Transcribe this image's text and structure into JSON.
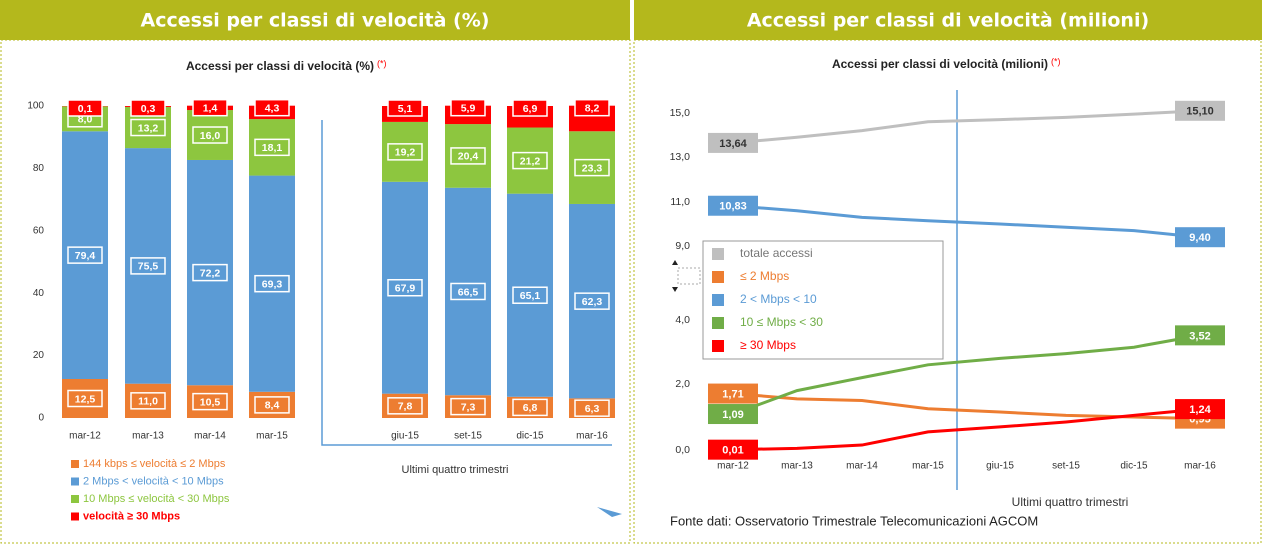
{
  "chart_data": [
    {
      "type": "bar",
      "stacked": true,
      "panel_title": "Accessi per classi di velocità (%)",
      "title": "Accessi per classi di velocità (%)",
      "title_note": "(*)",
      "annotation": "Ultimi quattro trimestri",
      "categories": [
        "mar-12",
        "mar-13",
        "mar-14",
        "mar-15",
        "giu-15",
        "set-15",
        "dic-15",
        "mar-16"
      ],
      "ylim": [
        0,
        100
      ],
      "yticks": [
        0,
        20,
        40,
        60,
        80,
        100
      ],
      "grid": false,
      "series": [
        {
          "name": "144 kbps  ≤ velocità ≤  2 Mbps",
          "color": "#ed7d31",
          "values": [
            12.5,
            11.0,
            10.5,
            8.4,
            7.8,
            7.3,
            6.8,
            6.3
          ],
          "value_labels": [
            "12,5",
            "11,0",
            "10,5",
            "8,4",
            "7,8",
            "7,3",
            "6,8",
            "6,3"
          ]
        },
        {
          "name": "2 Mbps  <  velocità  < 10 Mbps",
          "color": "#5b9bd5",
          "values": [
            79.4,
            75.5,
            72.2,
            69.3,
            67.9,
            66.5,
            65.1,
            62.3
          ],
          "value_labels": [
            "79,4",
            "75,5",
            "72,2",
            "69,3",
            "67,9",
            "66,5",
            "65,1",
            "62,3"
          ]
        },
        {
          "name": "10 Mbps  ≤  velocità  < 30 Mbps",
          "color": "#8dc63f",
          "values": [
            8.0,
            13.2,
            16.0,
            18.1,
            19.2,
            20.4,
            21.2,
            23.3
          ],
          "value_labels": [
            "8,0",
            "13,2",
            "16,0",
            "18,1",
            "19,2",
            "20,4",
            "21,2",
            "23,3"
          ]
        },
        {
          "name": "velocità ≥ 30 Mbps",
          "color": "#ff0000",
          "values": [
            0.1,
            0.3,
            1.4,
            4.3,
            5.1,
            5.9,
            6.9,
            8.2
          ],
          "value_labels": [
            "0,1",
            "0,3",
            "1,4",
            "4,3",
            "5,1",
            "5,9",
            "6,9",
            "8,2"
          ]
        }
      ]
    },
    {
      "type": "line",
      "panel_title": "Accessi per classi di velocità (milioni)",
      "title": "Accessi per classi di velocità (milioni)",
      "title_note": "(*)",
      "annotation": "Ultimi quattro trimestri",
      "categories": [
        "mar-12",
        "mar-13",
        "mar-14",
        "mar-15",
        "giu-15",
        "set-15",
        "dic-15",
        "mar-16"
      ],
      "ylim": [
        0,
        15
      ],
      "yticks": [
        {
          "value": 0,
          "label": "0,0"
        },
        {
          "value": 2,
          "label": "2,0"
        },
        {
          "value": 4,
          "label": "4,0"
        },
        {
          "value": 9,
          "label": "9,0"
        },
        {
          "value": 11,
          "label": "11,0"
        },
        {
          "value": 13,
          "label": "13,0"
        },
        {
          "value": 15,
          "label": "15,0"
        }
      ],
      "grid": false,
      "series": [
        {
          "name": "totale accessi",
          "color": "#bfbfbf",
          "values": [
            13.64,
            13.9,
            14.2,
            14.6,
            14.7,
            14.8,
            14.95,
            15.1
          ],
          "value_labels": [
            "13,64",
            null,
            null,
            null,
            null,
            null,
            null,
            "15,10"
          ]
        },
        {
          "name": "≤ 2 Mbps",
          "color": "#ed7d31",
          "values": [
            1.71,
            1.55,
            1.5,
            1.25,
            1.15,
            1.05,
            1.0,
            0.95
          ],
          "value_labels": [
            "1,71",
            null,
            null,
            null,
            null,
            null,
            null,
            "0,95"
          ]
        },
        {
          "name": "2 <  Mbps  < 10",
          "color": "#5b9bd5",
          "values": [
            10.83,
            10.6,
            10.3,
            10.15,
            10.0,
            9.85,
            9.7,
            9.4
          ],
          "value_labels": [
            "10,83",
            null,
            null,
            null,
            null,
            null,
            null,
            "9,40"
          ]
        },
        {
          "name": "10  ≤  Mbps < 30",
          "color": "#70ad47",
          "values": [
            1.09,
            1.8,
            2.2,
            2.6,
            2.8,
            2.95,
            3.15,
            3.52
          ],
          "value_labels": [
            "1,09",
            null,
            null,
            null,
            null,
            null,
            null,
            "3,52"
          ]
        },
        {
          "name": "≥ 30 Mbps",
          "color": "#ff0000",
          "values": [
            0.01,
            0.05,
            0.15,
            0.55,
            0.7,
            0.85,
            1.05,
            1.24
          ],
          "value_labels": [
            "0,01",
            null,
            null,
            null,
            null,
            null,
            null,
            "1,24"
          ]
        }
      ]
    }
  ],
  "source": "Fonte dati: Osservatorio Trimestrale Telecomunicazioni AGCOM"
}
